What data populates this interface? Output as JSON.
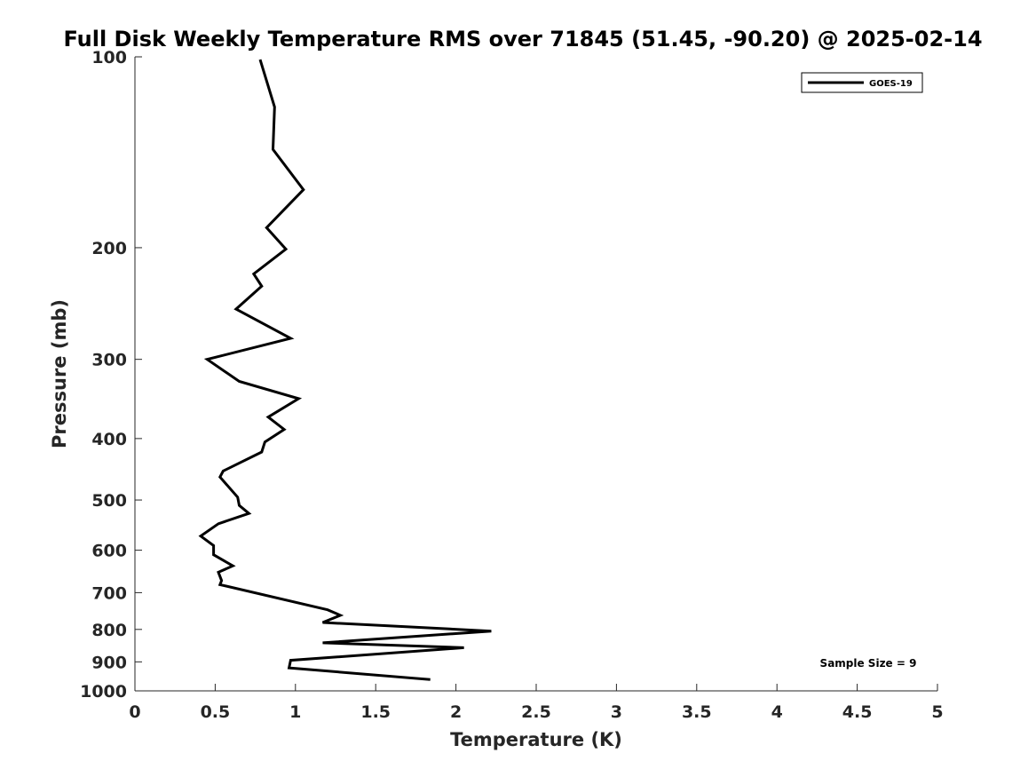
{
  "chart_data": {
    "type": "line",
    "title": "Full Disk Weekly Temperature RMS over 71845 (51.45, -90.20) @ 2025-02-14",
    "xlabel": "Temperature (K)",
    "ylabel": "Pressure (mb)",
    "xlim": [
      0,
      5
    ],
    "ylim": [
      100,
      1000
    ],
    "y_scale": "log",
    "y_reversed": true,
    "grid": false,
    "legend_position": "top-right",
    "x_ticks": [
      0,
      0.5,
      1,
      1.5,
      2,
      2.5,
      3,
      3.5,
      4,
      4.5,
      5
    ],
    "x_tick_labels": [
      "0",
      "0.5",
      "1",
      "1.5",
      "2",
      "2.5",
      "3",
      "3.5",
      "4",
      "4.5",
      "5"
    ],
    "y_ticks": [
      100,
      200,
      300,
      400,
      500,
      600,
      700,
      800,
      900,
      1000
    ],
    "y_tick_labels": [
      "100",
      "200",
      "300",
      "400",
      "500",
      "600",
      "700",
      "800",
      "900",
      "1000"
    ],
    "series": [
      {
        "name": "GOES-19",
        "color": "#000000",
        "x": [
          0.78,
          0.87,
          0.86,
          1.05,
          0.82,
          0.94,
          0.74,
          0.79,
          0.63,
          0.97,
          0.45,
          0.65,
          1.02,
          0.83,
          0.93,
          0.81,
          0.79,
          0.55,
          0.53,
          0.64,
          0.65,
          0.71,
          0.52,
          0.41,
          0.49,
          0.49,
          0.61,
          0.52,
          0.54,
          0.53,
          1.2,
          1.28,
          1.17,
          2.22,
          1.17,
          2.05,
          0.97,
          0.96,
          1.84
        ],
        "y": [
          101,
          120,
          140,
          162,
          186,
          201,
          220,
          230,
          250,
          278,
          300,
          325,
          346,
          370,
          387,
          405,
          420,
          450,
          460,
          495,
          510,
          525,
          545,
          570,
          590,
          610,
          635,
          650,
          670,
          680,
          745,
          760,
          780,
          805,
          840,
          855,
          895,
          920,
          960
        ]
      }
    ],
    "annotations": [
      "Sample Size = 9"
    ]
  }
}
